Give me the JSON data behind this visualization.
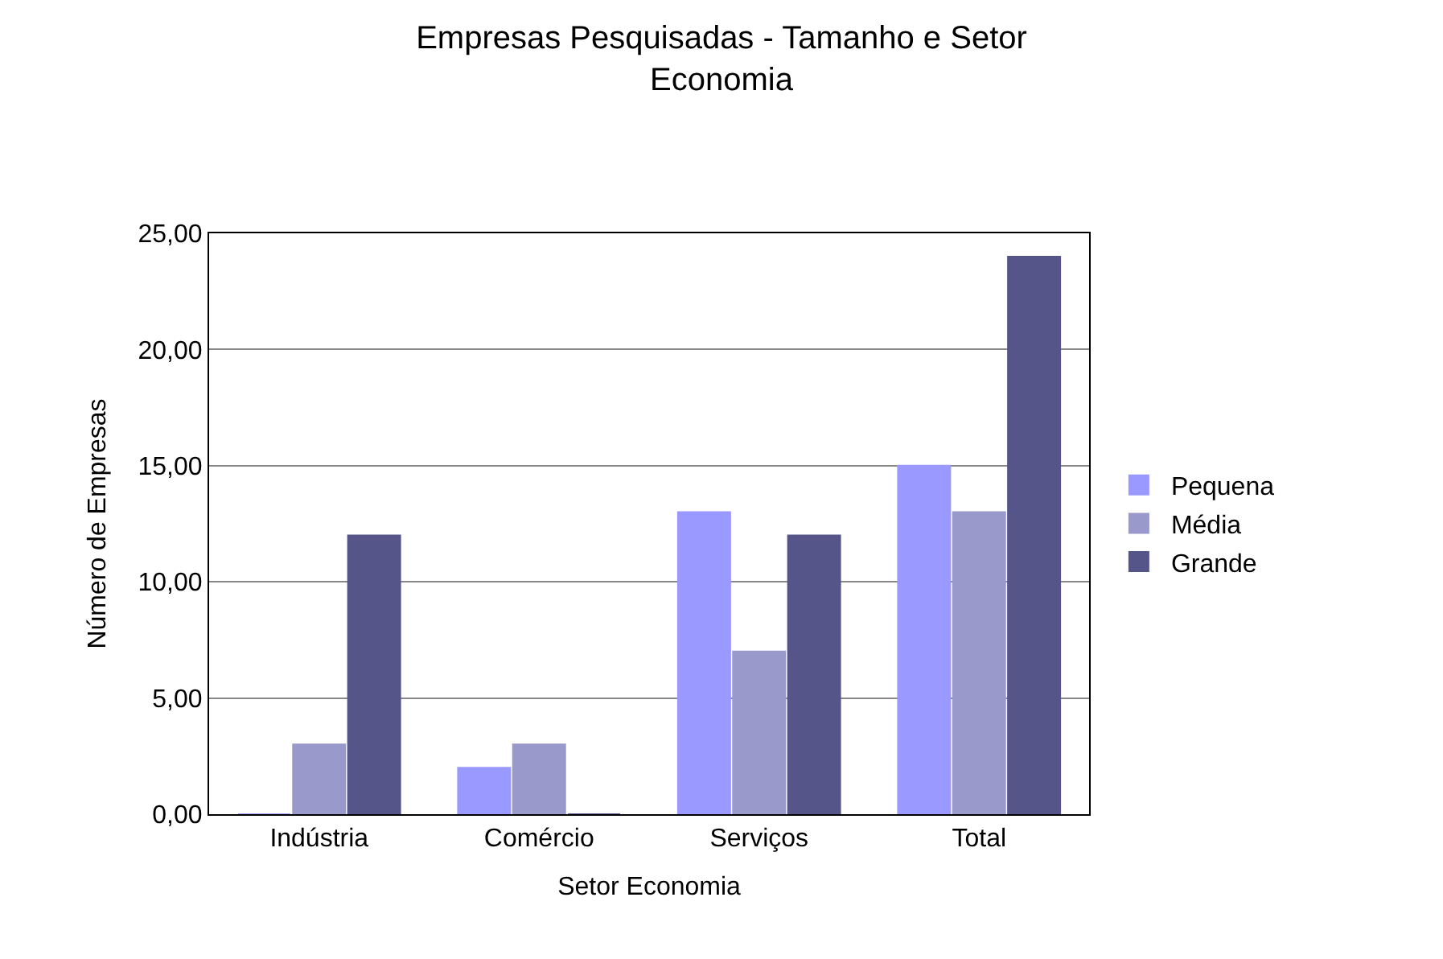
{
  "chart_data": {
    "type": "bar",
    "title": "Empresas Pesquisadas - Tamanho e Setor\nEconomia",
    "xlabel": "Setor Economia",
    "ylabel": "Número de Empresas",
    "categories": [
      "Indústria",
      "Comércio",
      "Serviços",
      "Total"
    ],
    "series": [
      {
        "name": "Pequena",
        "color": "#9999ff",
        "values": [
          0,
          2,
          13,
          15
        ]
      },
      {
        "name": "Média",
        "color": "#9999cc",
        "values": [
          3,
          3,
          7,
          13
        ]
      },
      {
        "name": "Grande",
        "color": "#55558a",
        "values": [
          12,
          0,
          12,
          24
        ]
      }
    ],
    "ylim": [
      0,
      25
    ],
    "yticks": [
      {
        "value": 0,
        "label": "0,00"
      },
      {
        "value": 5,
        "label": "5,00"
      },
      {
        "value": 10,
        "label": "10,00"
      },
      {
        "value": 15,
        "label": "15,00"
      },
      {
        "value": 20,
        "label": "20,00"
      },
      {
        "value": 25,
        "label": "25,00"
      }
    ],
    "grid": "y",
    "legend": "right"
  }
}
